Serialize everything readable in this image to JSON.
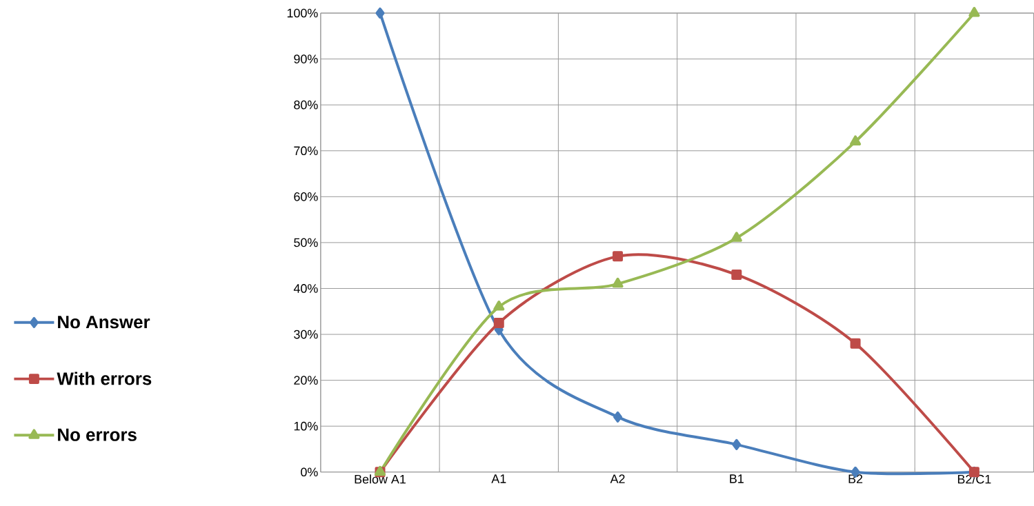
{
  "chart_data": {
    "type": "line",
    "categories": [
      "Below A1",
      "A1",
      "A2",
      "B1",
      "B2",
      "B2/C1"
    ],
    "series": [
      {
        "name": "No Answer",
        "color": "#4a7ebb",
        "marker": "diamond",
        "values": [
          100,
          31,
          12,
          6,
          0,
          0
        ]
      },
      {
        "name": "With errors",
        "color": "#be4b48",
        "marker": "square",
        "values": [
          0,
          32.5,
          47,
          43,
          28,
          0
        ]
      },
      {
        "name": "No errors",
        "color": "#98b954",
        "marker": "triangle",
        "values": [
          0,
          36,
          41,
          51,
          72,
          100
        ]
      }
    ],
    "ylim": [
      0,
      100
    ],
    "yticks": [
      {
        "value": 0,
        "label": "0%"
      },
      {
        "value": 10,
        "label": "10%"
      },
      {
        "value": 20,
        "label": "20%"
      },
      {
        "value": 30,
        "label": "30%"
      },
      {
        "value": 40,
        "label": "40%"
      },
      {
        "value": 50,
        "label": "50%"
      },
      {
        "value": 60,
        "label": "60%"
      },
      {
        "value": 70,
        "label": "70%"
      },
      {
        "value": 80,
        "label": "80%"
      },
      {
        "value": 90,
        "label": "90%"
      },
      {
        "value": 100,
        "label": "100%"
      }
    ],
    "grid": true,
    "legend": "left",
    "line_style": "solid"
  }
}
